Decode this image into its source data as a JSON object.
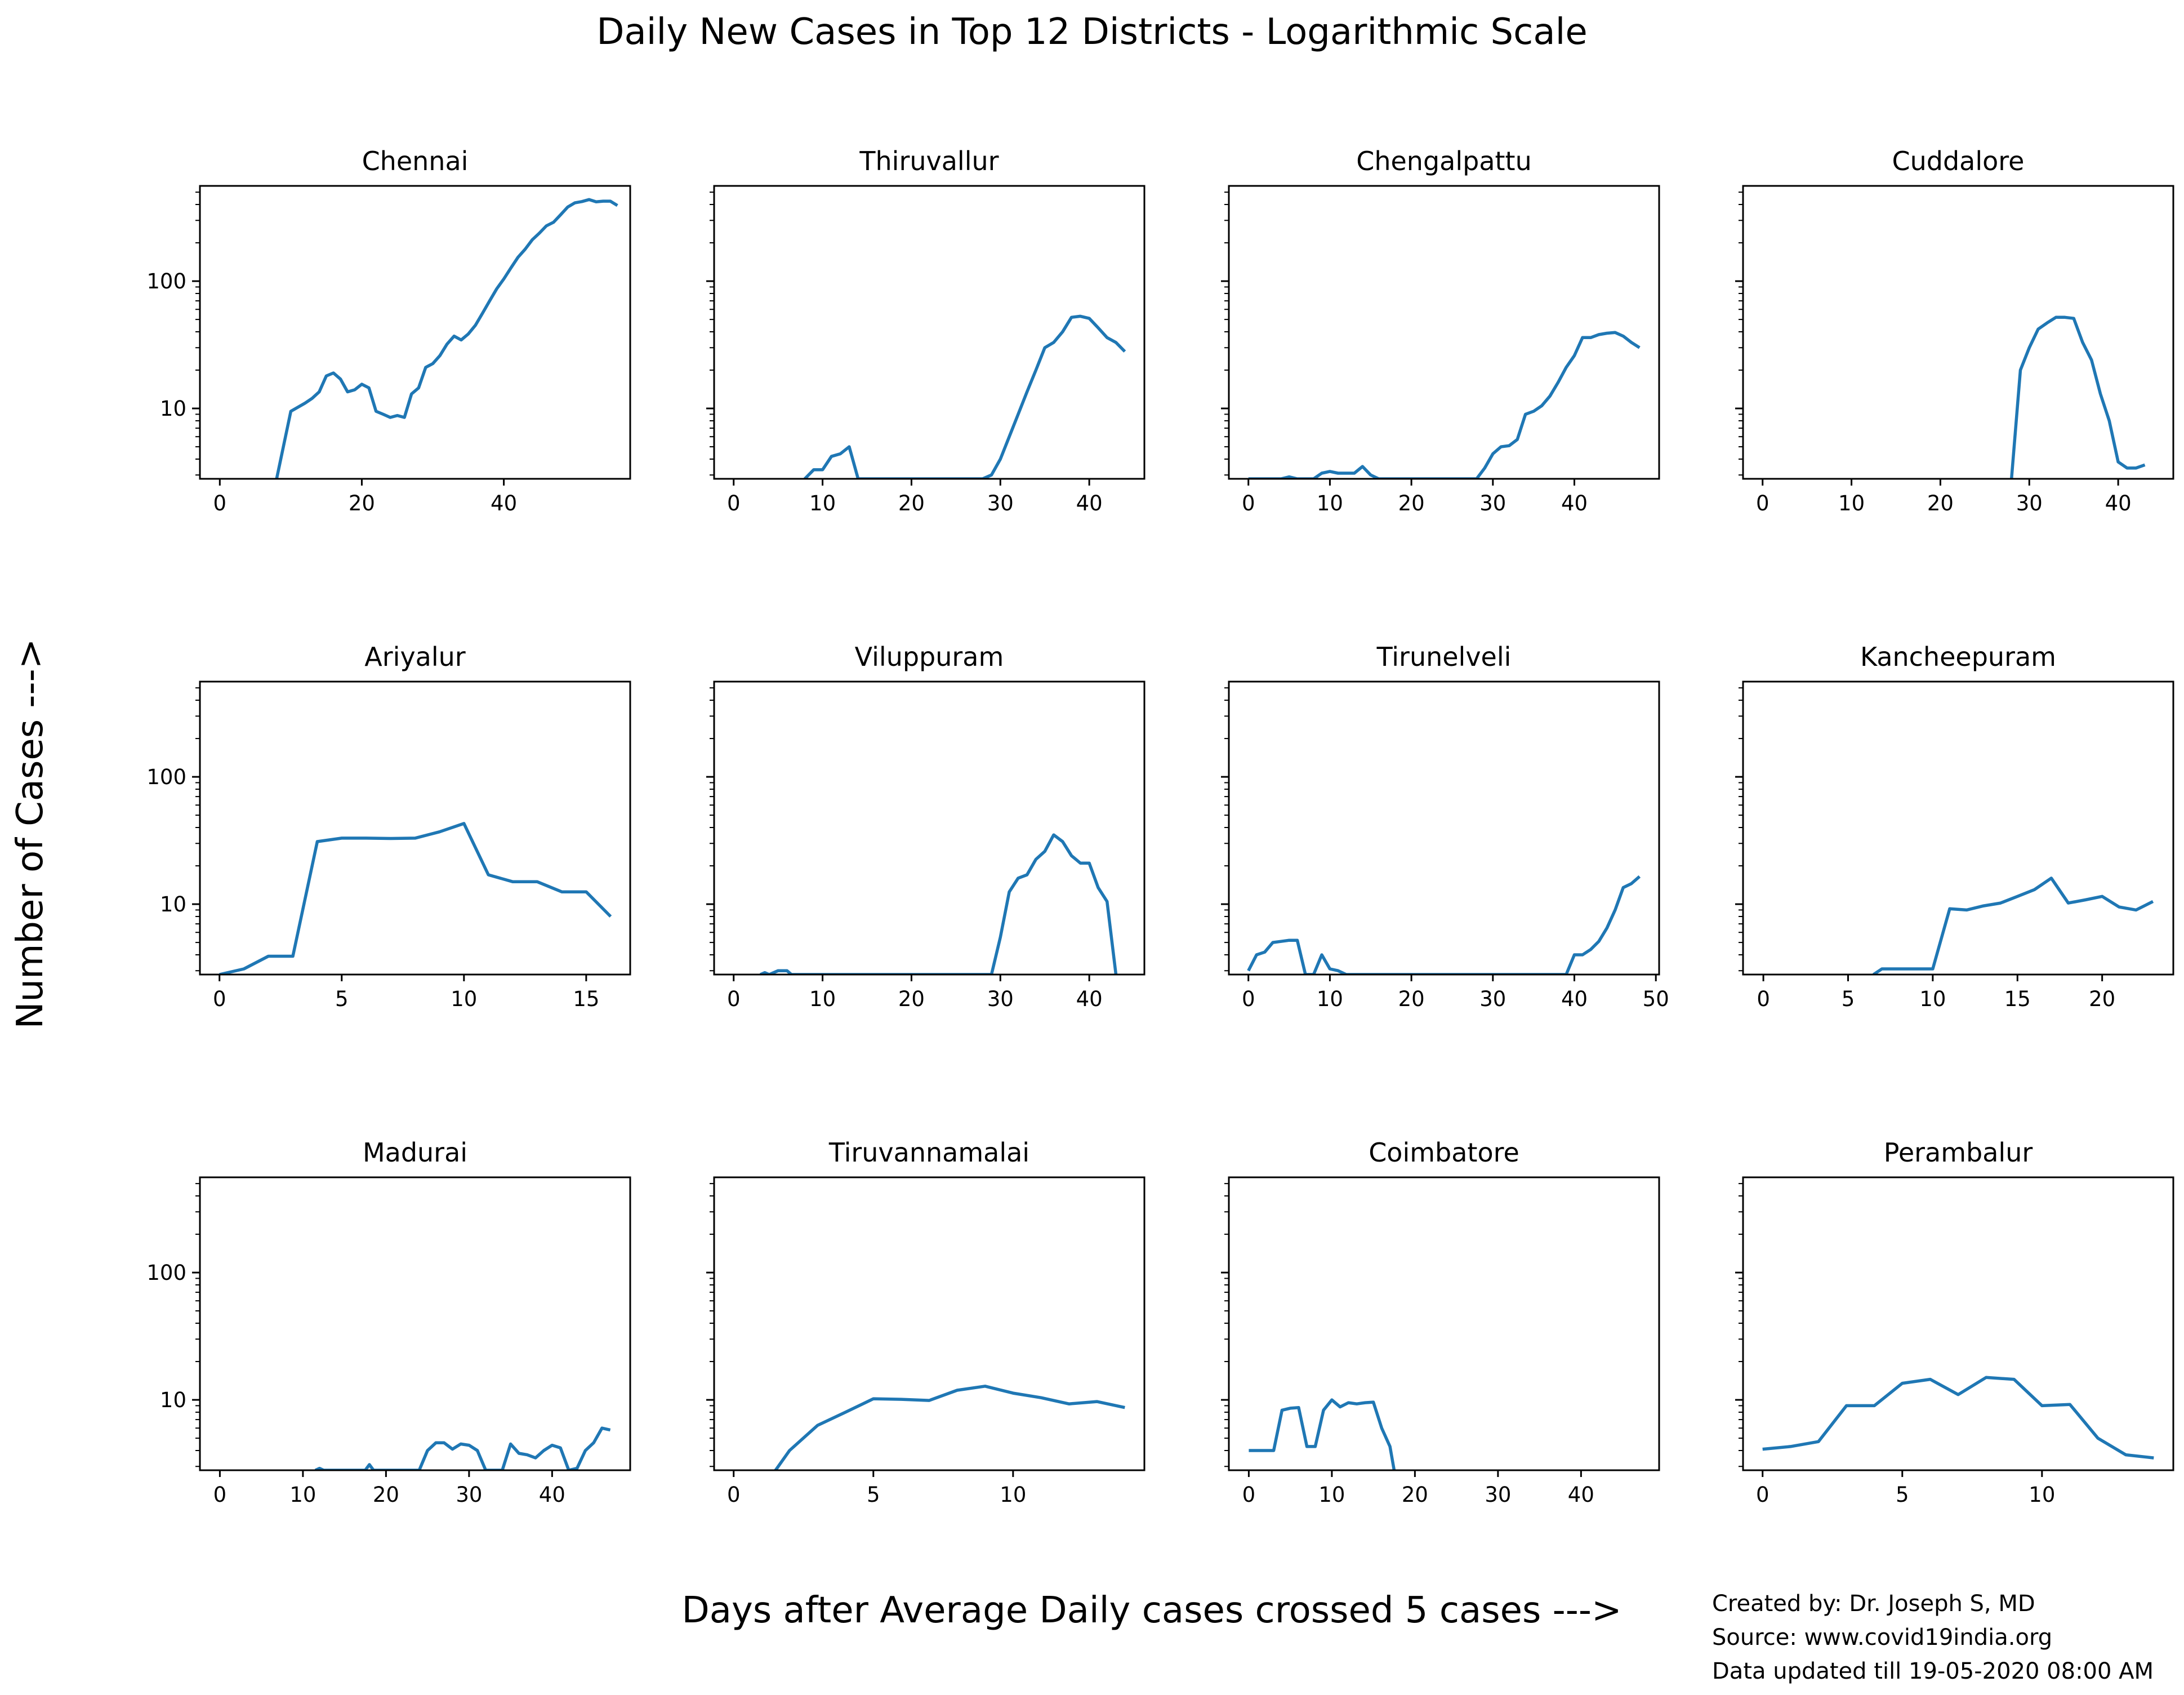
{
  "title": "Daily New Cases in Top 12 Districts - Logarithmic Scale",
  "ylabel": "Number of Cases --->",
  "xlabel": "Days after Average Daily cases crossed 5 cases --->",
  "credits": {
    "line1": "Created by: Dr. Joseph S, MD",
    "line2": "Source: www.covid19india.org",
    "line3": "Data updated till 19-05-2020 08:00 AM"
  },
  "colors": {
    "series": "#1f77b4"
  },
  "chart_data": [
    {
      "type": "line",
      "title": "Chennai",
      "yscale": "log",
      "ylim": [
        2.8,
        560
      ],
      "xlim": [
        -2.8,
        57.8
      ],
      "xticks": [
        0,
        20,
        40
      ],
      "yticks": [
        10,
        100
      ],
      "x": [
        8,
        10,
        12,
        13,
        14,
        15,
        16,
        17,
        18,
        19,
        20,
        21,
        22,
        23,
        24,
        25,
        26,
        27,
        28,
        29,
        30,
        31,
        32,
        33,
        34,
        35,
        36,
        37,
        38,
        39,
        40,
        41,
        42,
        43,
        44,
        45,
        46,
        47,
        48,
        49,
        50,
        51,
        52,
        53,
        54,
        55,
        56
      ],
      "y": [
        2.8,
        9.5,
        11,
        12,
        13.5,
        18,
        19,
        17,
        13.5,
        14,
        15.5,
        14.5,
        9.5,
        9,
        8.5,
        8.8,
        8.5,
        13,
        14.5,
        21,
        22.5,
        26,
        32,
        37,
        34.5,
        38.5,
        45,
        56,
        70,
        87,
        104,
        127,
        154,
        178,
        211,
        238,
        272,
        290,
        332,
        382,
        412,
        422,
        437,
        420,
        425,
        425,
        393
      ]
    },
    {
      "type": "line",
      "title": "Thiruvallur",
      "yscale": "log",
      "ylim": [
        2.8,
        560
      ],
      "xlim": [
        -2.2,
        46.2
      ],
      "xticks": [
        0,
        10,
        20,
        30,
        40
      ],
      "yticks": [
        10,
        100
      ],
      "x": [
        8,
        9,
        10,
        11,
        12,
        13,
        14,
        28,
        29,
        30,
        31,
        32,
        33,
        34,
        35,
        36,
        37,
        38,
        39,
        40,
        41,
        42,
        43,
        44
      ],
      "y": [
        2.8,
        3.3,
        3.3,
        4.2,
        4.4,
        5.0,
        2.8,
        2.8,
        3.0,
        4.0,
        6.0,
        9.0,
        13.5,
        20,
        30,
        33,
        40,
        52,
        53,
        51,
        43,
        36,
        33,
        28
      ]
    },
    {
      "type": "line",
      "title": "Chengalpattu",
      "yscale": "log",
      "ylim": [
        2.8,
        560
      ],
      "xlim": [
        -2.4,
        50.4
      ],
      "xticks": [
        0,
        10,
        20,
        30,
        40
      ],
      "yticks": [
        10,
        100
      ],
      "x": [
        0,
        1,
        2,
        3,
        4,
        5,
        6,
        7,
        8,
        9,
        10,
        11,
        12,
        13,
        14,
        15,
        16,
        17,
        18,
        19,
        20,
        21,
        22,
        23,
        24,
        25,
        26,
        27,
        28,
        29,
        30,
        31,
        32,
        33,
        34,
        35,
        36,
        37,
        38,
        39,
        40,
        41,
        42,
        43,
        44,
        45,
        46,
        47,
        48
      ],
      "y": [
        2.8,
        2.8,
        2.8,
        2.8,
        2.8,
        2.9,
        2.8,
        2.8,
        2.8,
        3.1,
        3.2,
        3.1,
        3.1,
        3.1,
        3.5,
        3.0,
        2.8,
        2.8,
        2.8,
        2.8,
        2.8,
        2.8,
        2.8,
        2.8,
        2.8,
        2.8,
        2.8,
        2.8,
        2.8,
        3.4,
        4.4,
        5.0,
        5.1,
        5.7,
        9.0,
        9.5,
        10.5,
        12.5,
        16,
        21,
        26,
        36,
        36,
        38,
        39,
        39.5,
        37,
        33,
        30
      ]
    },
    {
      "type": "line",
      "title": "Cuddalore",
      "yscale": "log",
      "ylim": [
        2.8,
        560
      ],
      "xlim": [
        -2.2,
        46.2
      ],
      "xticks": [
        0,
        10,
        20,
        30,
        40
      ],
      "yticks": [
        10,
        100
      ],
      "x": [
        28,
        29,
        30,
        31,
        32,
        33,
        34,
        35,
        36,
        37,
        38,
        39,
        40,
        41,
        42,
        43
      ],
      "y": [
        2.8,
        20,
        30,
        42,
        47,
        52,
        52,
        51,
        33,
        24,
        13,
        8,
        3.8,
        3.4,
        3.4,
        3.6
      ]
    },
    {
      "type": "line",
      "title": "Ariyalur",
      "yscale": "log",
      "ylim": [
        2.8,
        560
      ],
      "xlim": [
        -0.8,
        16.8
      ],
      "xticks": [
        0,
        5,
        10,
        15
      ],
      "yticks": [
        10,
        100
      ],
      "x": [
        0,
        1,
        2,
        3,
        4,
        5,
        6,
        7,
        8,
        9,
        10,
        11,
        12,
        13,
        14,
        15,
        16
      ],
      "y": [
        2.8,
        3.1,
        3.9,
        3.9,
        31,
        33,
        33,
        32.8,
        33,
        37,
        43,
        17,
        15,
        15,
        12.5,
        12.5,
        8
      ]
    },
    {
      "type": "line",
      "title": "Viluppuram",
      "yscale": "log",
      "ylim": [
        2.8,
        560
      ],
      "xlim": [
        -2.2,
        46.2
      ],
      "xticks": [
        0,
        10,
        20,
        30,
        40
      ],
      "yticks": [
        10,
        100
      ],
      "x": [
        3,
        3.5,
        4,
        5,
        5.5,
        6,
        6.5,
        29,
        30,
        31,
        32,
        33,
        34,
        35,
        36,
        37,
        38,
        39,
        40,
        41,
        42,
        43
      ],
      "y": [
        2.8,
        2.9,
        2.8,
        3.0,
        3.0,
        3.0,
        2.8,
        2.8,
        5.5,
        12.5,
        16,
        17,
        22.5,
        26,
        35,
        31,
        24,
        21,
        21,
        13.5,
        10.5,
        2.8
      ]
    },
    {
      "type": "line",
      "title": "Tirunelveli",
      "yscale": "log",
      "ylim": [
        2.8,
        560
      ],
      "xlim": [
        -2.4,
        50.4
      ],
      "xticks": [
        0,
        10,
        20,
        30,
        40,
        50
      ],
      "yticks": [
        10,
        100
      ],
      "x": [
        0,
        1,
        2,
        3,
        4,
        5,
        6,
        7,
        8,
        9,
        10,
        11,
        12,
        13,
        14,
        39,
        40,
        41,
        42,
        43,
        44,
        45,
        46,
        47,
        48
      ],
      "y": [
        3.0,
        4.0,
        4.2,
        5.0,
        5.1,
        5.2,
        5.2,
        2.8,
        2.8,
        4.0,
        3.1,
        3.0,
        2.8,
        2.8,
        2.8,
        2.8,
        4.0,
        4.0,
        4.4,
        5.1,
        6.5,
        9,
        13.5,
        14.5,
        16.5
      ]
    },
    {
      "type": "line",
      "title": "Kancheepuram",
      "yscale": "log",
      "ylim": [
        2.8,
        560
      ],
      "xlim": [
        -1.2,
        24.2
      ],
      "xticks": [
        0,
        5,
        10,
        15,
        20
      ],
      "yticks": [
        10,
        100
      ],
      "x": [
        6.5,
        7,
        8,
        9,
        10,
        11,
        12,
        13,
        14,
        15,
        16,
        17,
        18,
        19,
        20,
        21,
        22,
        23
      ],
      "y": [
        2.8,
        3.1,
        3.1,
        3.1,
        3.1,
        9.2,
        9.0,
        9.7,
        10.2,
        11.5,
        13,
        16,
        10.2,
        10.8,
        11.5,
        9.5,
        9,
        10.5
      ]
    },
    {
      "type": "line",
      "title": "Madurai",
      "yscale": "log",
      "ylim": [
        2.8,
        560
      ],
      "xlim": [
        -2.4,
        49.4
      ],
      "xticks": [
        0,
        10,
        20,
        30,
        40
      ],
      "yticks": [
        10,
        100
      ],
      "x": [
        11.5,
        12,
        12.5,
        17.5,
        18,
        18.5,
        24,
        25,
        26,
        27,
        28,
        29,
        30,
        31,
        32,
        33,
        34,
        35,
        36,
        37,
        38,
        39,
        40,
        41,
        42,
        43,
        44,
        45,
        46,
        47
      ],
      "y": [
        2.8,
        2.9,
        2.8,
        2.8,
        3.1,
        2.8,
        2.8,
        4.0,
        4.6,
        4.6,
        4.1,
        4.5,
        4.4,
        4.0,
        2.8,
        2.8,
        2.8,
        4.5,
        3.8,
        3.7,
        3.5,
        4.0,
        4.4,
        4.2,
        2.8,
        2.9,
        4.0,
        4.6,
        6.0,
        5.8
      ]
    },
    {
      "type": "line",
      "title": "Tiruvannamalai",
      "yscale": "log",
      "ylim": [
        2.8,
        560
      ],
      "xlim": [
        -0.7,
        14.7
      ],
      "xticks": [
        0,
        5,
        10
      ],
      "yticks": [
        10,
        100
      ],
      "x": [
        1.5,
        2,
        3,
        4,
        5,
        6,
        7,
        8,
        9,
        10,
        11,
        12,
        13,
        14
      ],
      "y": [
        2.8,
        4.0,
        6.3,
        8.0,
        10.2,
        10.1,
        9.9,
        11.9,
        12.8,
        11.3,
        10.4,
        9.3,
        9.7,
        8.7
      ]
    },
    {
      "type": "line",
      "title": "Coimbatore",
      "yscale": "log",
      "ylim": [
        2.8,
        560
      ],
      "xlim": [
        -2.4,
        49.4
      ],
      "xticks": [
        0,
        10,
        20,
        30,
        40
      ],
      "yticks": [
        10,
        100
      ],
      "x": [
        0,
        1,
        2,
        3,
        4,
        5,
        6,
        7,
        8,
        9,
        10,
        11,
        12,
        13,
        14,
        15,
        16,
        17,
        17.5
      ],
      "y": [
        4.0,
        4.0,
        4.0,
        4.0,
        8.3,
        8.6,
        8.7,
        4.3,
        4.3,
        8.3,
        10.0,
        8.8,
        9.5,
        9.3,
        9.5,
        9.6,
        6.0,
        4.3,
        2.8
      ]
    },
    {
      "type": "line",
      "title": "Perambalur",
      "yscale": "log",
      "ylim": [
        2.8,
        560
      ],
      "xlim": [
        -0.7,
        14.7
      ],
      "xticks": [
        0,
        5,
        10
      ],
      "yticks": [
        10,
        100
      ],
      "x": [
        0,
        1,
        2,
        3,
        4,
        5,
        6,
        7,
        8,
        9,
        10,
        11,
        12,
        13,
        14
      ],
      "y": [
        4.1,
        4.3,
        4.7,
        9.0,
        9.0,
        13.5,
        14.5,
        11.0,
        15,
        14.5,
        9,
        9.2,
        5.0,
        3.7,
        3.5
      ]
    }
  ]
}
